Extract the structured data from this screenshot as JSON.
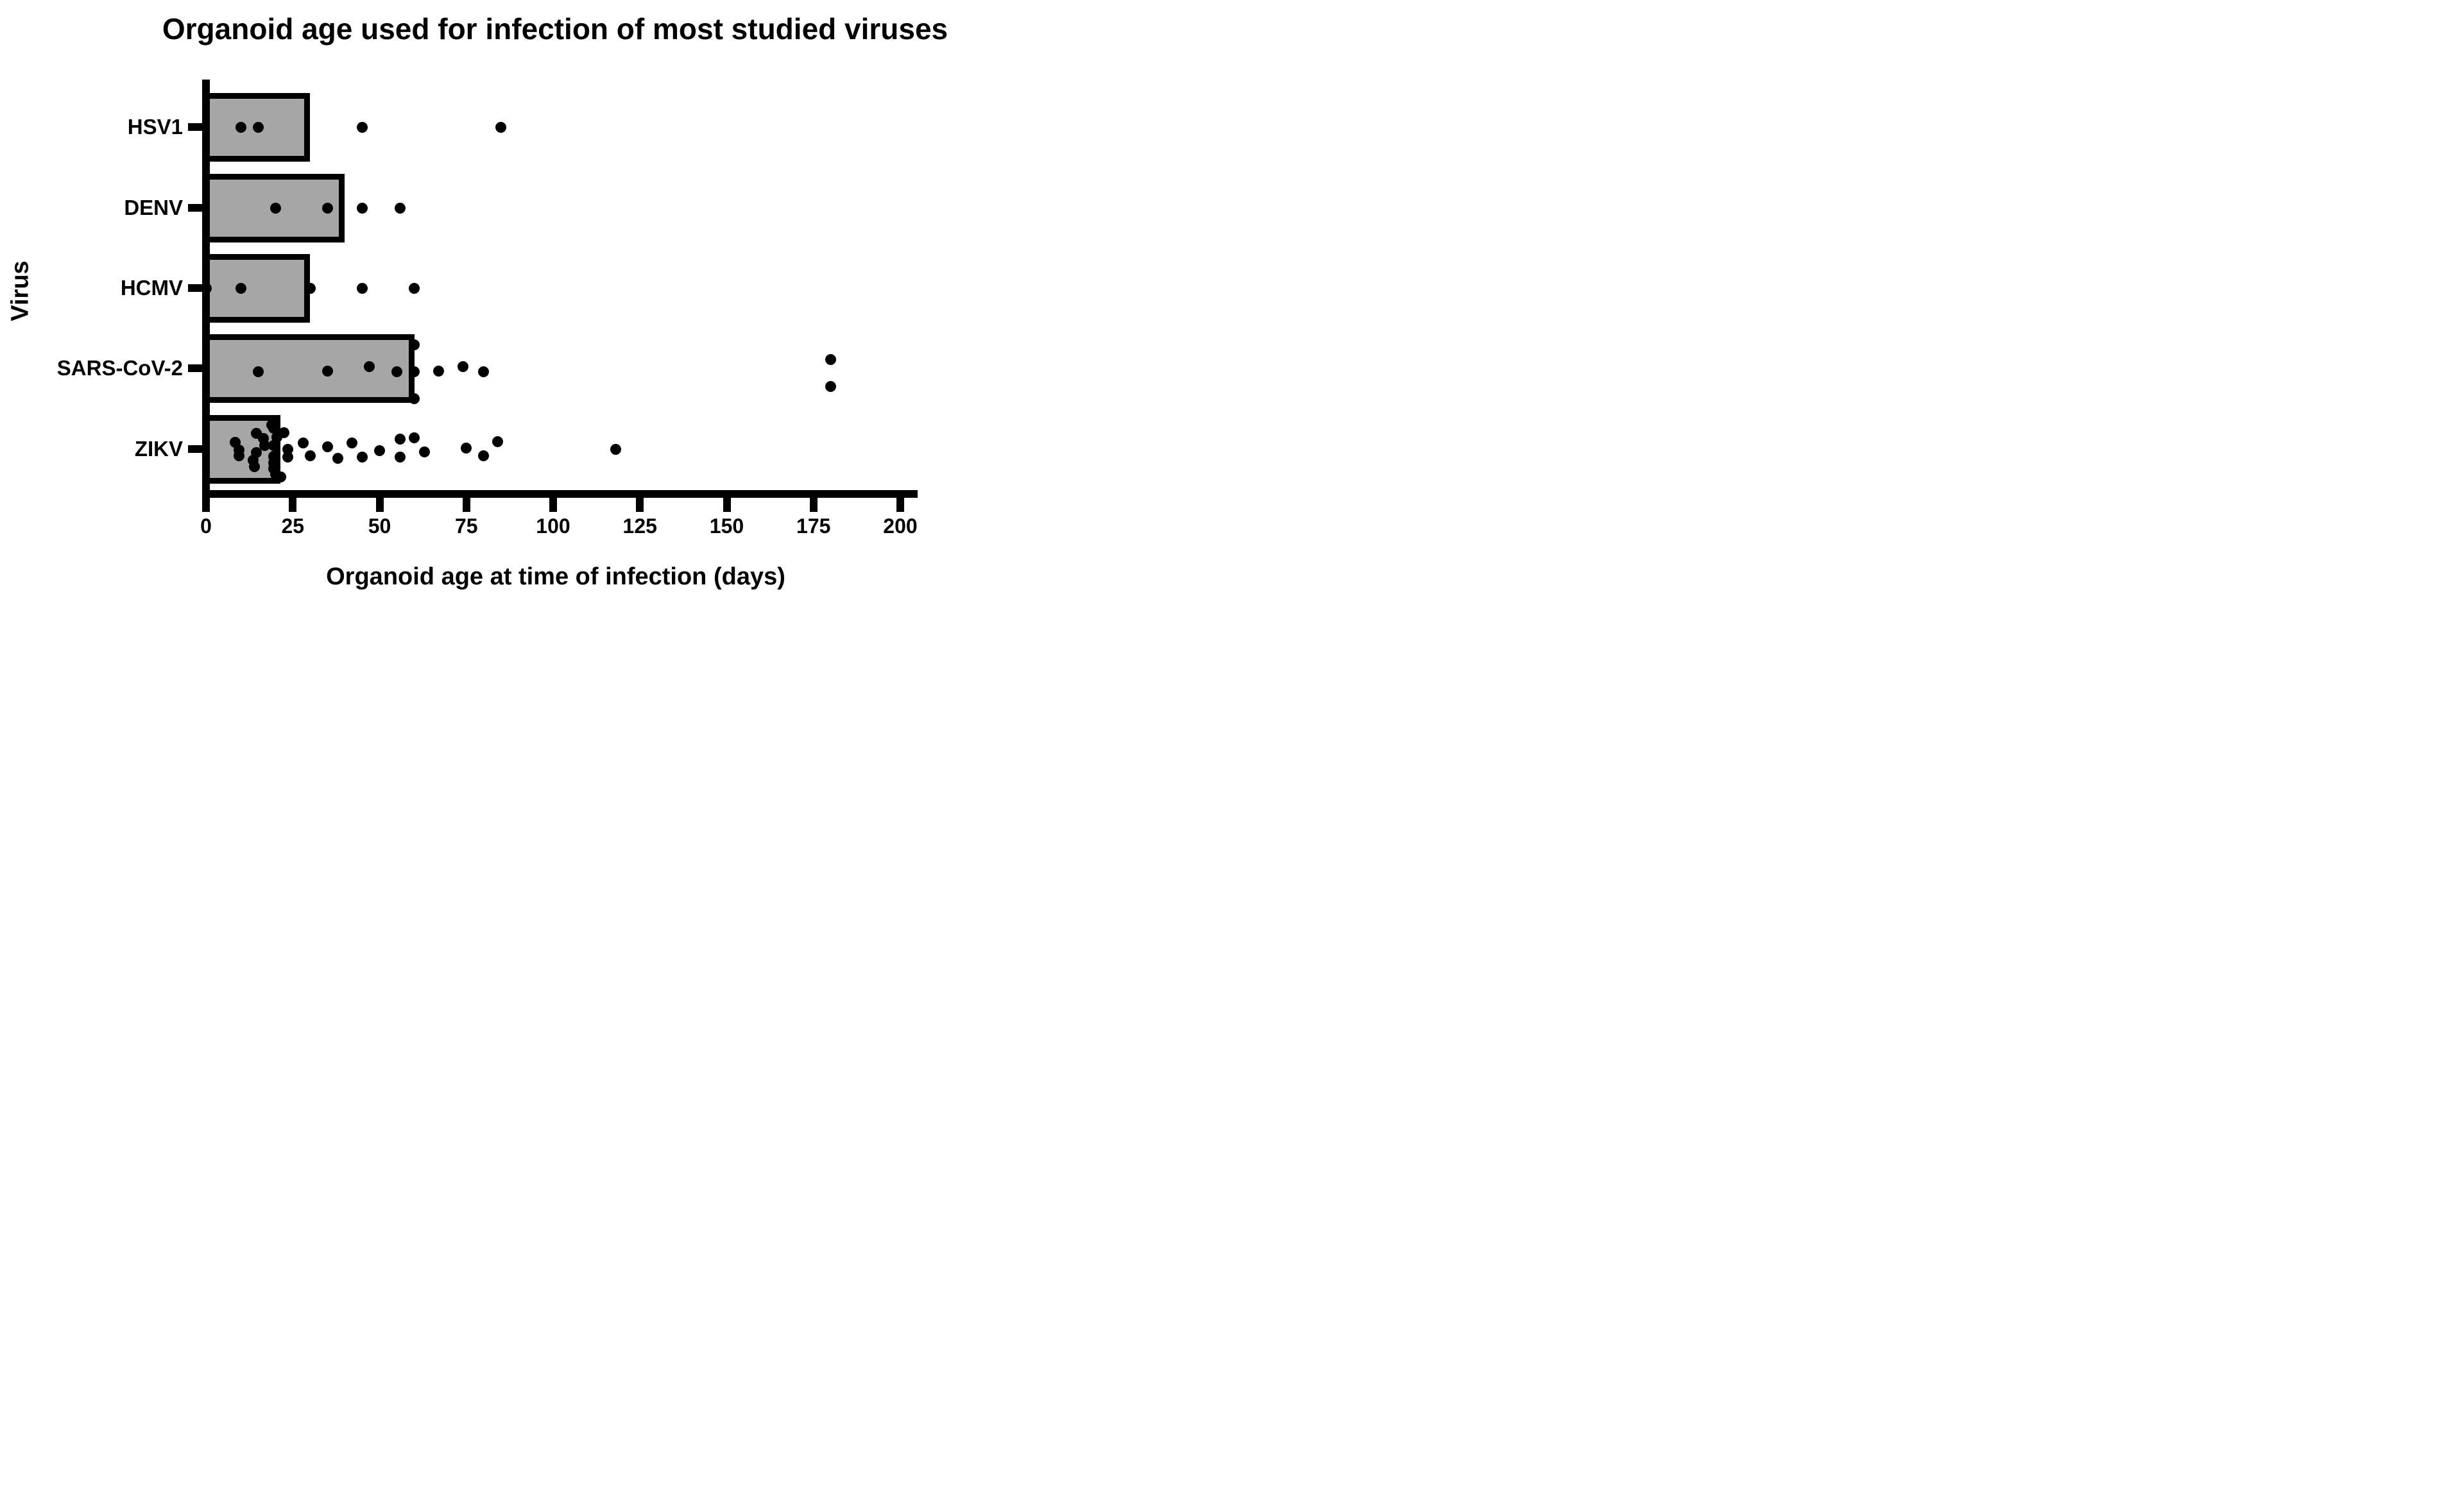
{
  "figure": {
    "title": "Organoid age used for infection of most studied viruses"
  },
  "chart_data": {
    "type": "bar",
    "orientation": "horizontal",
    "title": "Organoid age used for infection of most studied viruses",
    "xlabel": "Organoid age at time of infection (days)",
    "ylabel": "Virus",
    "xlim": [
      0,
      200
    ],
    "xticks": [
      0,
      25,
      50,
      75,
      100,
      125,
      150,
      175,
      200
    ],
    "grid": false,
    "legend": "none",
    "bar_fill_color": "#A6A6A6",
    "bar_border_color": "#000000",
    "dot_color": "#000000",
    "categories": [
      "HSV1",
      "DENV",
      "HCMV",
      "SARS-CoV-2",
      "ZIKV"
    ],
    "bar_values": [
      30,
      40,
      30,
      60,
      21.5
    ],
    "points": [
      [
        {
          "x": 10,
          "dy": 0
        },
        {
          "x": 15,
          "dy": 0
        },
        {
          "x": 45,
          "dy": 0
        },
        {
          "x": 85,
          "dy": 0
        }
      ],
      [
        {
          "x": 20,
          "dy": 0
        },
        {
          "x": 35,
          "dy": 0
        },
        {
          "x": 45,
          "dy": 0
        },
        {
          "x": 56,
          "dy": 0
        }
      ],
      [
        {
          "x": 0,
          "dy": 0
        },
        {
          "x": 10,
          "dy": 0
        },
        {
          "x": 30,
          "dy": 0
        },
        {
          "x": 45,
          "dy": 0
        },
        {
          "x": 60,
          "dy": 0
        }
      ],
      [
        {
          "x": 15,
          "dy": 5
        },
        {
          "x": 35,
          "dy": 4
        },
        {
          "x": 47,
          "dy": -3
        },
        {
          "x": 55,
          "dy": 5
        },
        {
          "x": 60,
          "dy": -37
        },
        {
          "x": 60,
          "dy": 5
        },
        {
          "x": 60,
          "dy": 47
        },
        {
          "x": 67,
          "dy": 4
        },
        {
          "x": 74,
          "dy": -3
        },
        {
          "x": 80,
          "dy": 5
        },
        {
          "x": 180,
          "dy": -14
        },
        {
          "x": 180,
          "dy": 28
        }
      ],
      [
        {
          "x": 8.5,
          "dy": -11
        },
        {
          "x": 9.5,
          "dy": 1
        },
        {
          "x": 9.5,
          "dy": 10
        },
        {
          "x": 14.5,
          "dy": -25
        },
        {
          "x": 16.5,
          "dy": -17
        },
        {
          "x": 17,
          "dy": -6
        },
        {
          "x": 14.5,
          "dy": 5
        },
        {
          "x": 13.5,
          "dy": 17
        },
        {
          "x": 14,
          "dy": 27
        },
        {
          "x": 19,
          "dy": -38
        },
        {
          "x": 19.5,
          "dy": -33
        },
        {
          "x": 20.5,
          "dy": -19
        },
        {
          "x": 19.5,
          "dy": -6
        },
        {
          "x": 19.5,
          "dy": 11
        },
        {
          "x": 19.5,
          "dy": 21
        },
        {
          "x": 19.5,
          "dy": 30
        },
        {
          "x": 20,
          "dy": 39
        },
        {
          "x": 21.5,
          "dy": 43
        },
        {
          "x": 22.5,
          "dy": -26
        },
        {
          "x": 23.5,
          "dy": 0
        },
        {
          "x": 23.5,
          "dy": 12
        },
        {
          "x": 28,
          "dy": -10
        },
        {
          "x": 30,
          "dy": 10
        },
        {
          "x": 35,
          "dy": -4
        },
        {
          "x": 38,
          "dy": 14
        },
        {
          "x": 42,
          "dy": -10
        },
        {
          "x": 45,
          "dy": 12
        },
        {
          "x": 50,
          "dy": 2
        },
        {
          "x": 56,
          "dy": -16
        },
        {
          "x": 56,
          "dy": 12
        },
        {
          "x": 60,
          "dy": -18
        },
        {
          "x": 63,
          "dy": 4
        },
        {
          "x": 75,
          "dy": -2
        },
        {
          "x": 80,
          "dy": 10
        },
        {
          "x": 84,
          "dy": -12
        },
        {
          "x": 118,
          "dy": 0
        }
      ]
    ]
  }
}
